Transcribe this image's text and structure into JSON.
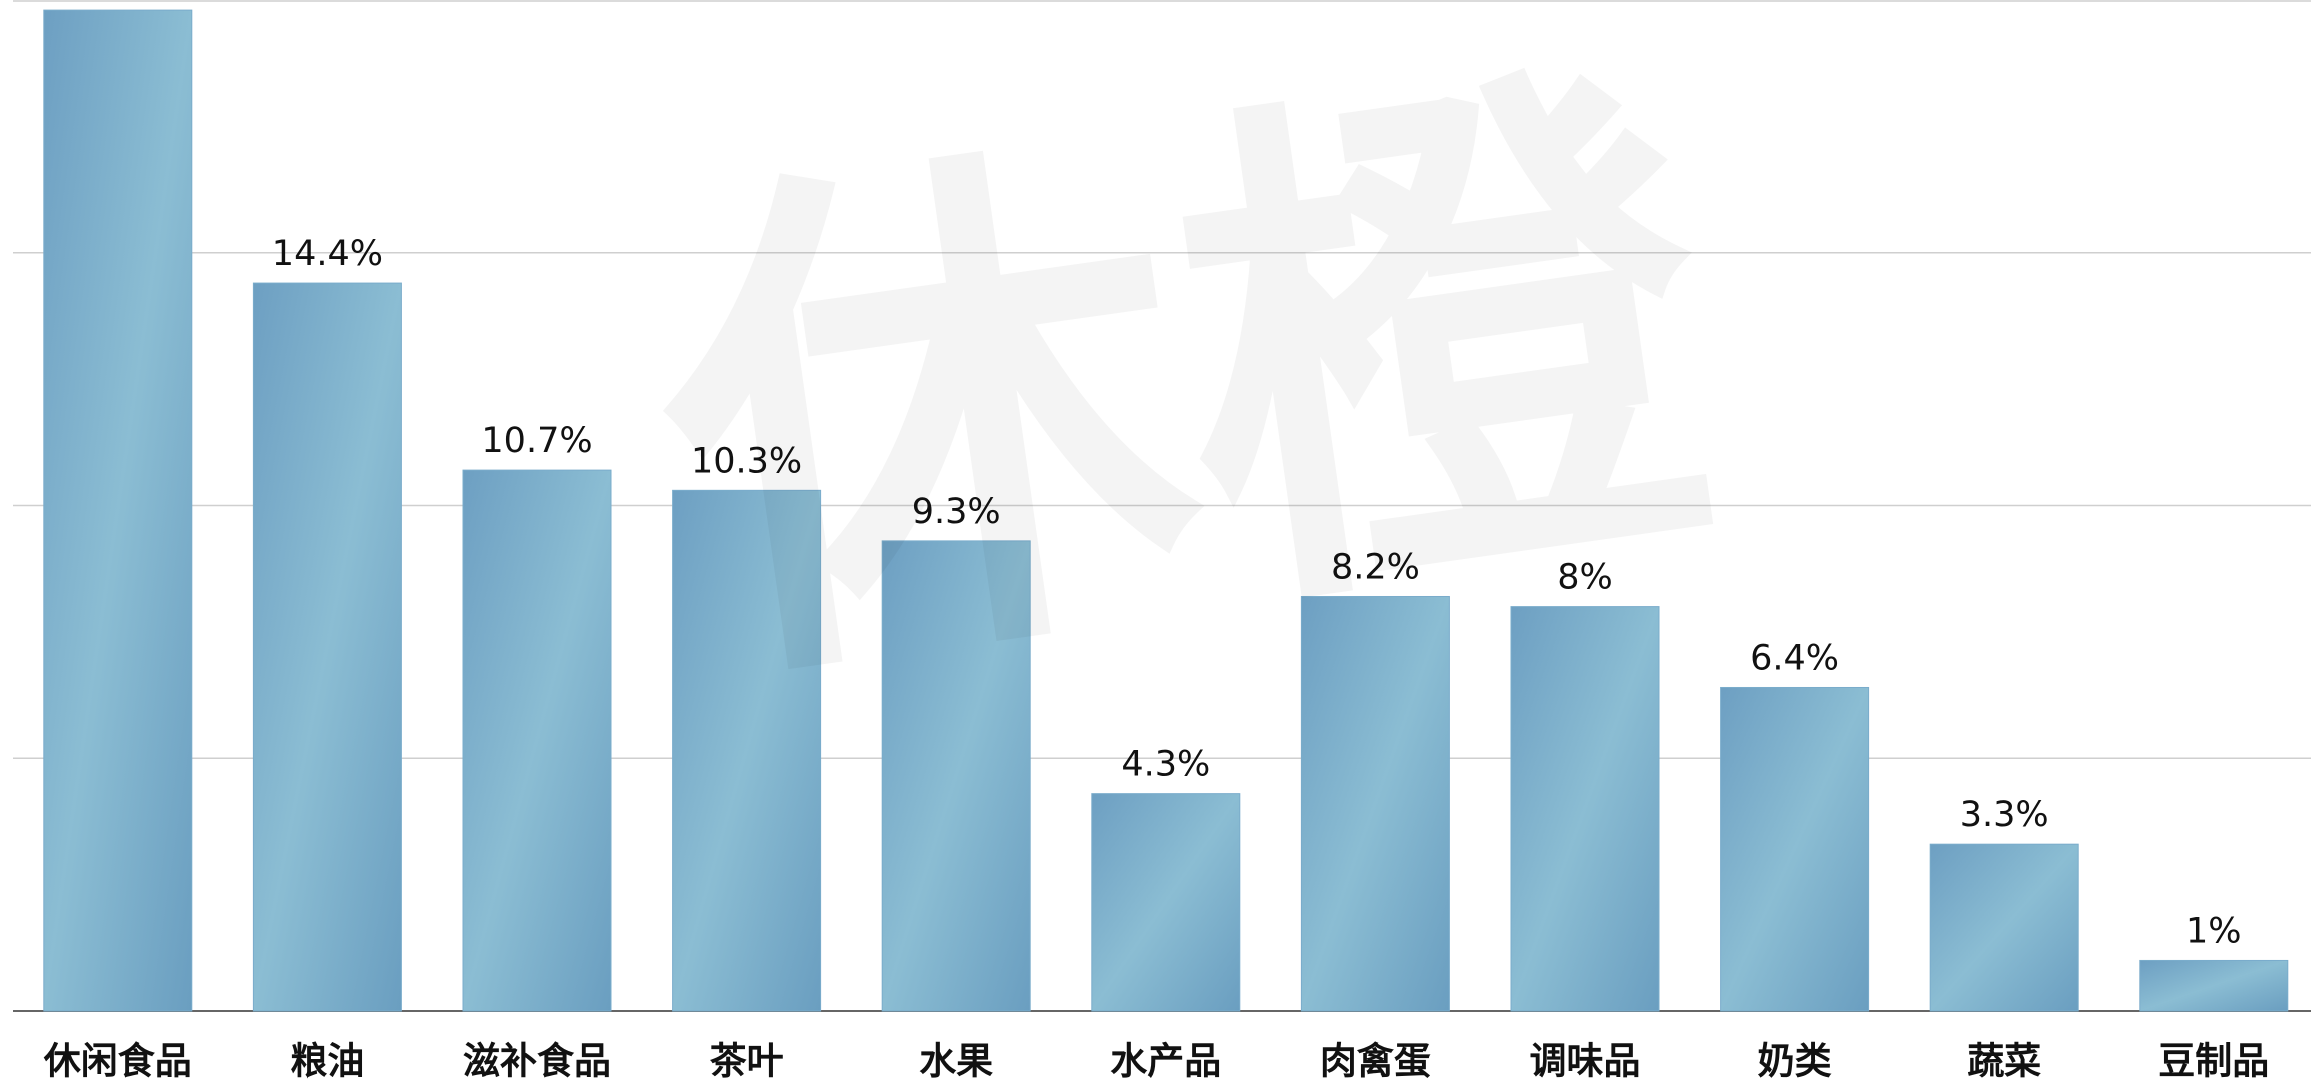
{
  "chart_data": {
    "type": "bar",
    "watermark": "休橙",
    "categories": [
      "休闲食品",
      "粮油",
      "滋补食品",
      "茶叶",
      "水果",
      "水产品",
      "肉禽蛋",
      "调味品",
      "奶类",
      "蔬菜",
      "豆制品"
    ],
    "values": [
      19.8,
      14.4,
      10.7,
      10.3,
      9.3,
      4.3,
      8.2,
      8,
      6.4,
      3.3,
      1
    ],
    "value_labels": [
      null,
      "14.4%",
      "10.7%",
      "10.3%",
      "9.3%",
      "4.3%",
      "8.2%",
      "8%",
      "6.4%",
      "3.3%",
      "1%"
    ],
    "color": "#7aaccb",
    "ylim": [
      0,
      20
    ],
    "yticks": [
      0,
      5,
      10,
      15,
      20
    ],
    "grid": true
  }
}
